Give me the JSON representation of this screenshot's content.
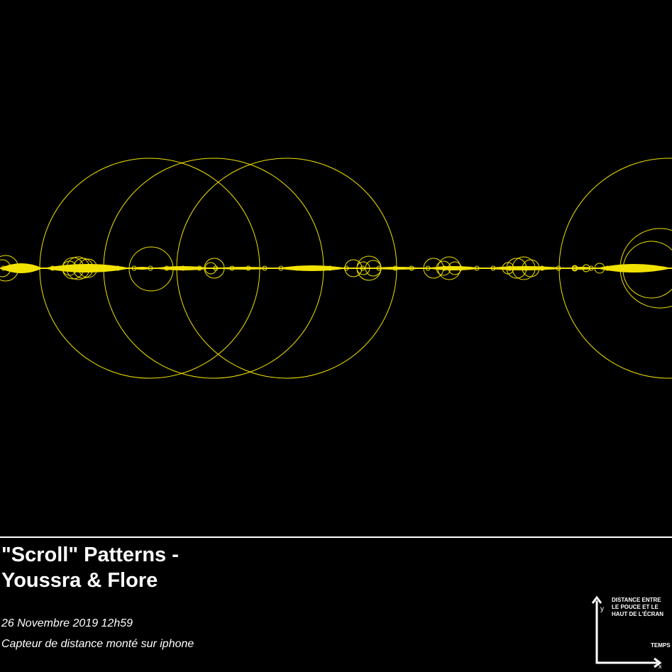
{
  "title": {
    "line1": "\"Scroll\" Patterns -",
    "line2": "Youssra & Flore"
  },
  "date": "26 Novembre 2019 12h59",
  "sensor": "Capteur de distance monté sur iphone",
  "legend": {
    "y_letter": "y",
    "y_label": "DISTANCE ENTRE\nLE POUCE ET LE\nHAUT DE L'ÉCRAN",
    "x_label": "TEMPS",
    "x_letter": "x"
  },
  "colors": {
    "background": "#000000",
    "trace": "#f2e200",
    "text": "#ffffff"
  },
  "icons": [
    "axis-arrow-icon"
  ]
}
